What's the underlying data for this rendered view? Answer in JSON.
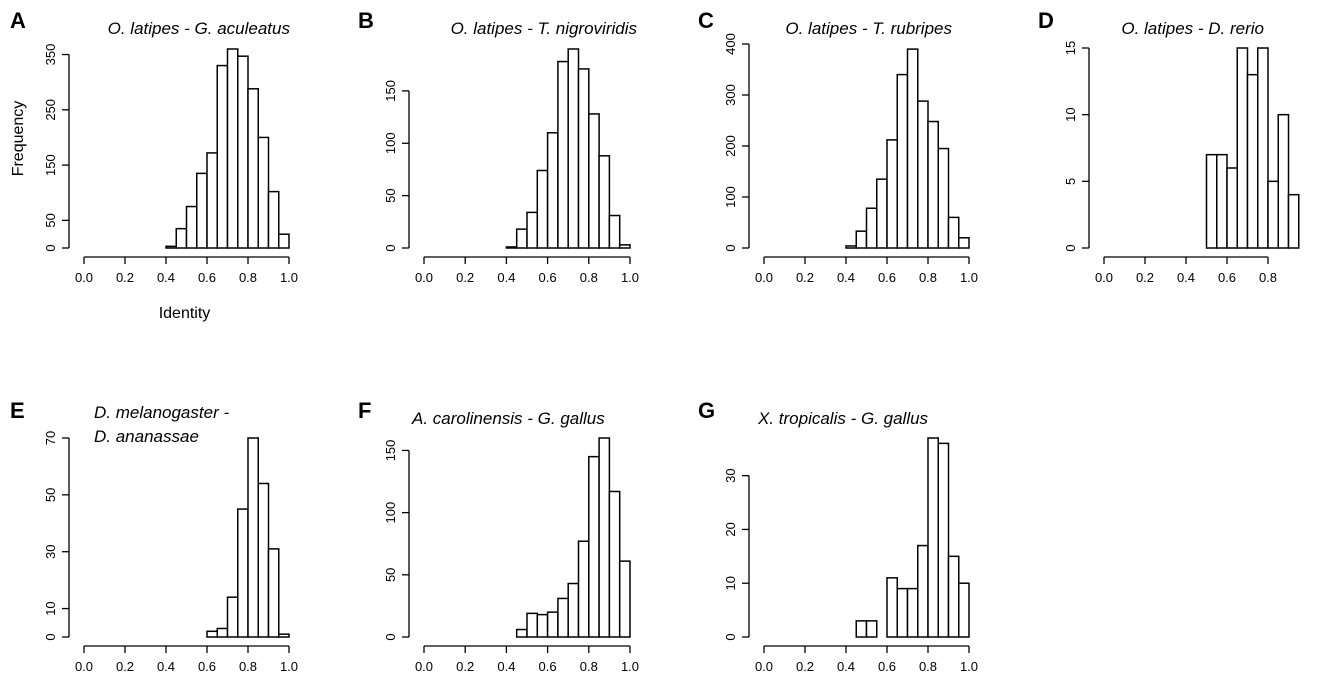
{
  "chart_data": [
    {
      "panel": "A",
      "title": "O. latipes - G. aculeatus",
      "type": "bar",
      "xlabel": "Identity",
      "ylabel": "Frequency",
      "xlim": [
        0,
        1
      ],
      "ylim": [
        0,
        360
      ],
      "xticks": [
        "0.0",
        "0.2",
        "0.4",
        "0.6",
        "0.8",
        "1.0"
      ],
      "yticks": [
        "0",
        "50",
        "150",
        "250",
        "350"
      ],
      "bin_width": 0.05,
      "bin_starts": [
        0.4,
        0.45,
        0.5,
        0.55,
        0.6,
        0.65,
        0.7,
        0.75,
        0.8,
        0.85,
        0.9,
        0.95
      ],
      "values": [
        3,
        35,
        75,
        135,
        172,
        330,
        360,
        347,
        288,
        200,
        102,
        25
      ]
    },
    {
      "panel": "B",
      "title": "O. latipes - T. nigroviridis",
      "type": "bar",
      "xlabel": "",
      "ylabel": "",
      "xlim": [
        0,
        1
      ],
      "ylim": [
        0,
        190
      ],
      "xticks": [
        "0.0",
        "0.2",
        "0.4",
        "0.6",
        "0.8",
        "1.0"
      ],
      "yticks": [
        "0",
        "50",
        "100",
        "150"
      ],
      "bin_width": 0.05,
      "bin_starts": [
        0.4,
        0.45,
        0.5,
        0.55,
        0.6,
        0.65,
        0.7,
        0.75,
        0.8,
        0.85,
        0.9,
        0.95
      ],
      "values": [
        1,
        18,
        34,
        74,
        110,
        178,
        190,
        171,
        128,
        88,
        31,
        3
      ]
    },
    {
      "panel": "C",
      "title": "O. latipes - T. rubripes",
      "type": "bar",
      "xlabel": "",
      "ylabel": "",
      "xlim": [
        0,
        1
      ],
      "ylim": [
        0,
        400
      ],
      "xticks": [
        "0.0",
        "0.2",
        "0.4",
        "0.6",
        "0.8",
        "1.0"
      ],
      "yticks": [
        "0",
        "100",
        "200",
        "300",
        "400"
      ],
      "bin_width": 0.05,
      "bin_starts": [
        0.4,
        0.45,
        0.5,
        0.55,
        0.6,
        0.65,
        0.7,
        0.75,
        0.8,
        0.85,
        0.9,
        0.95
      ],
      "values": [
        4,
        33,
        78,
        135,
        212,
        340,
        390,
        288,
        248,
        195,
        60,
        20
      ]
    },
    {
      "panel": "D",
      "title": "O. latipes - D. rerio",
      "type": "bar",
      "xlabel": "",
      "ylabel": "",
      "xlim": [
        0,
        1
      ],
      "ylim": [
        0,
        15
      ],
      "xticks": [
        "0.0",
        "0.2",
        "0.4",
        "0.6",
        "0.8"
      ],
      "yticks": [
        "0",
        "5",
        "10",
        "15"
      ],
      "bin_width": 0.05,
      "bin_starts": [
        0.5,
        0.55,
        0.6,
        0.65,
        0.7,
        0.75,
        0.8,
        0.85,
        0.9
      ],
      "values": [
        7,
        7,
        6,
        15,
        13,
        15,
        5,
        10,
        4
      ]
    },
    {
      "panel": "E",
      "title": "D. melanogaster -",
      "title_line2": "D. ananassae",
      "type": "bar",
      "xlabel": "",
      "ylabel": "",
      "xlim": [
        0,
        1
      ],
      "ylim": [
        0,
        70
      ],
      "xticks": [
        "0.0",
        "0.2",
        "0.4",
        "0.6",
        "0.8",
        "1.0"
      ],
      "yticks": [
        "0",
        "10",
        "30",
        "50",
        "70"
      ],
      "bin_width": 0.05,
      "bin_starts": [
        0.6,
        0.65,
        0.7,
        0.75,
        0.8,
        0.85,
        0.9,
        0.95
      ],
      "values": [
        2,
        3,
        14,
        45,
        70,
        54,
        31,
        1
      ]
    },
    {
      "panel": "F",
      "title": "A. carolinensis - G. gallus",
      "type": "bar",
      "xlabel": "",
      "ylabel": "",
      "xlim": [
        0,
        1
      ],
      "ylim": [
        0,
        160
      ],
      "xticks": [
        "0.0",
        "0.2",
        "0.4",
        "0.6",
        "0.8",
        "1.0"
      ],
      "yticks": [
        "0",
        "50",
        "100",
        "150"
      ],
      "bin_width": 0.05,
      "bin_starts": [
        0.45,
        0.5,
        0.55,
        0.6,
        0.65,
        0.7,
        0.75,
        0.8,
        0.85,
        0.9,
        0.95
      ],
      "values": [
        6,
        19,
        18,
        20,
        31,
        43,
        77,
        145,
        160,
        117,
        61
      ]
    },
    {
      "panel": "G",
      "title": "X. tropicalis - G. gallus",
      "type": "bar",
      "xlabel": "",
      "ylabel": "",
      "xlim": [
        0,
        1
      ],
      "ylim": [
        0,
        37
      ],
      "xticks": [
        "0.0",
        "0.2",
        "0.4",
        "0.6",
        "0.8",
        "1.0"
      ],
      "yticks": [
        "0",
        "10",
        "20",
        "30"
      ],
      "bin_width": 0.05,
      "bin_starts": [
        0.45,
        0.5,
        0.55,
        0.6,
        0.65,
        0.7,
        0.75,
        0.8,
        0.85,
        0.9,
        0.95
      ],
      "values": [
        3,
        3,
        0,
        11,
        9,
        9,
        17,
        37,
        36,
        15,
        10
      ]
    }
  ]
}
